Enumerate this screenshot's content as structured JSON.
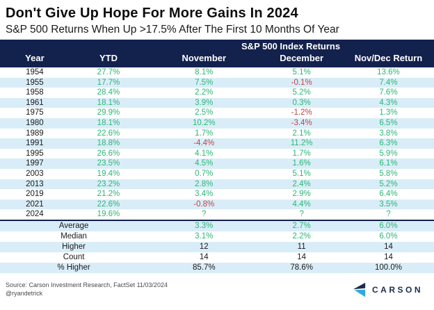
{
  "title": "Don't Give Up Hope For More Gains In 2024",
  "subtitle": "S&P 500 Returns When Up >17.5% After The First 10 Months Of Year",
  "chart_data": {
    "type": "table",
    "group_header": "S&P 500 Index Returns",
    "columns": [
      "Year",
      "YTD",
      "November",
      "December",
      "Nov/Dec Return"
    ],
    "rows": [
      [
        "1954",
        "27.7%",
        "8.1%",
        "5.1%",
        "13.6%"
      ],
      [
        "1955",
        "17.7%",
        "7.5%",
        "-0.1%",
        "7.4%"
      ],
      [
        "1958",
        "28.4%",
        "2.2%",
        "5.2%",
        "7.6%"
      ],
      [
        "1961",
        "18.1%",
        "3.9%",
        "0.3%",
        "4.3%"
      ],
      [
        "1975",
        "29.9%",
        "2.5%",
        "-1.2%",
        "1.3%"
      ],
      [
        "1980",
        "18.1%",
        "10.2%",
        "-3.4%",
        "6.5%"
      ],
      [
        "1989",
        "22.6%",
        "1.7%",
        "2.1%",
        "3.8%"
      ],
      [
        "1991",
        "18.8%",
        "-4.4%",
        "11.2%",
        "6.3%"
      ],
      [
        "1995",
        "26.6%",
        "4.1%",
        "1.7%",
        "5.9%"
      ],
      [
        "1997",
        "23.5%",
        "4.5%",
        "1.6%",
        "6.1%"
      ],
      [
        "2003",
        "19.4%",
        "0.7%",
        "5.1%",
        "5.8%"
      ],
      [
        "2013",
        "23.2%",
        "2.8%",
        "2.4%",
        "5.2%"
      ],
      [
        "2019",
        "21.2%",
        "3.4%",
        "2.9%",
        "6.4%"
      ],
      [
        "2021",
        "22.6%",
        "-0.8%",
        "4.4%",
        "3.5%"
      ],
      [
        "2024",
        "19.6%",
        "?",
        "?",
        "?"
      ]
    ],
    "summary_rows": [
      {
        "label": "Average",
        "values": [
          "3.3%",
          "2.7%",
          "6.0%"
        ],
        "value_color": "green"
      },
      {
        "label": "Median",
        "values": [
          "3.1%",
          "2.2%",
          "6.0%"
        ],
        "value_color": "green"
      },
      {
        "label": "Higher",
        "values": [
          "12",
          "11",
          "14"
        ],
        "value_color": "black"
      },
      {
        "label": "Count",
        "values": [
          "14",
          "14",
          "14"
        ],
        "value_color": "black"
      },
      {
        "label": "% Higher",
        "values": [
          "85.7%",
          "78.6%",
          "100.0%"
        ],
        "value_color": "black"
      }
    ]
  },
  "footer": {
    "source": "Source: Carson Investment Research, FactSet 11/03/2024",
    "handle": "@ryandetrick",
    "logo_text": "CARSON"
  },
  "colors": {
    "navy": "#13214d",
    "stripe_blue": "#d9edf8",
    "positive_green": "#2bb673",
    "negative_red": "#bf4442",
    "logo_light_blue": "#2ea9e0"
  }
}
